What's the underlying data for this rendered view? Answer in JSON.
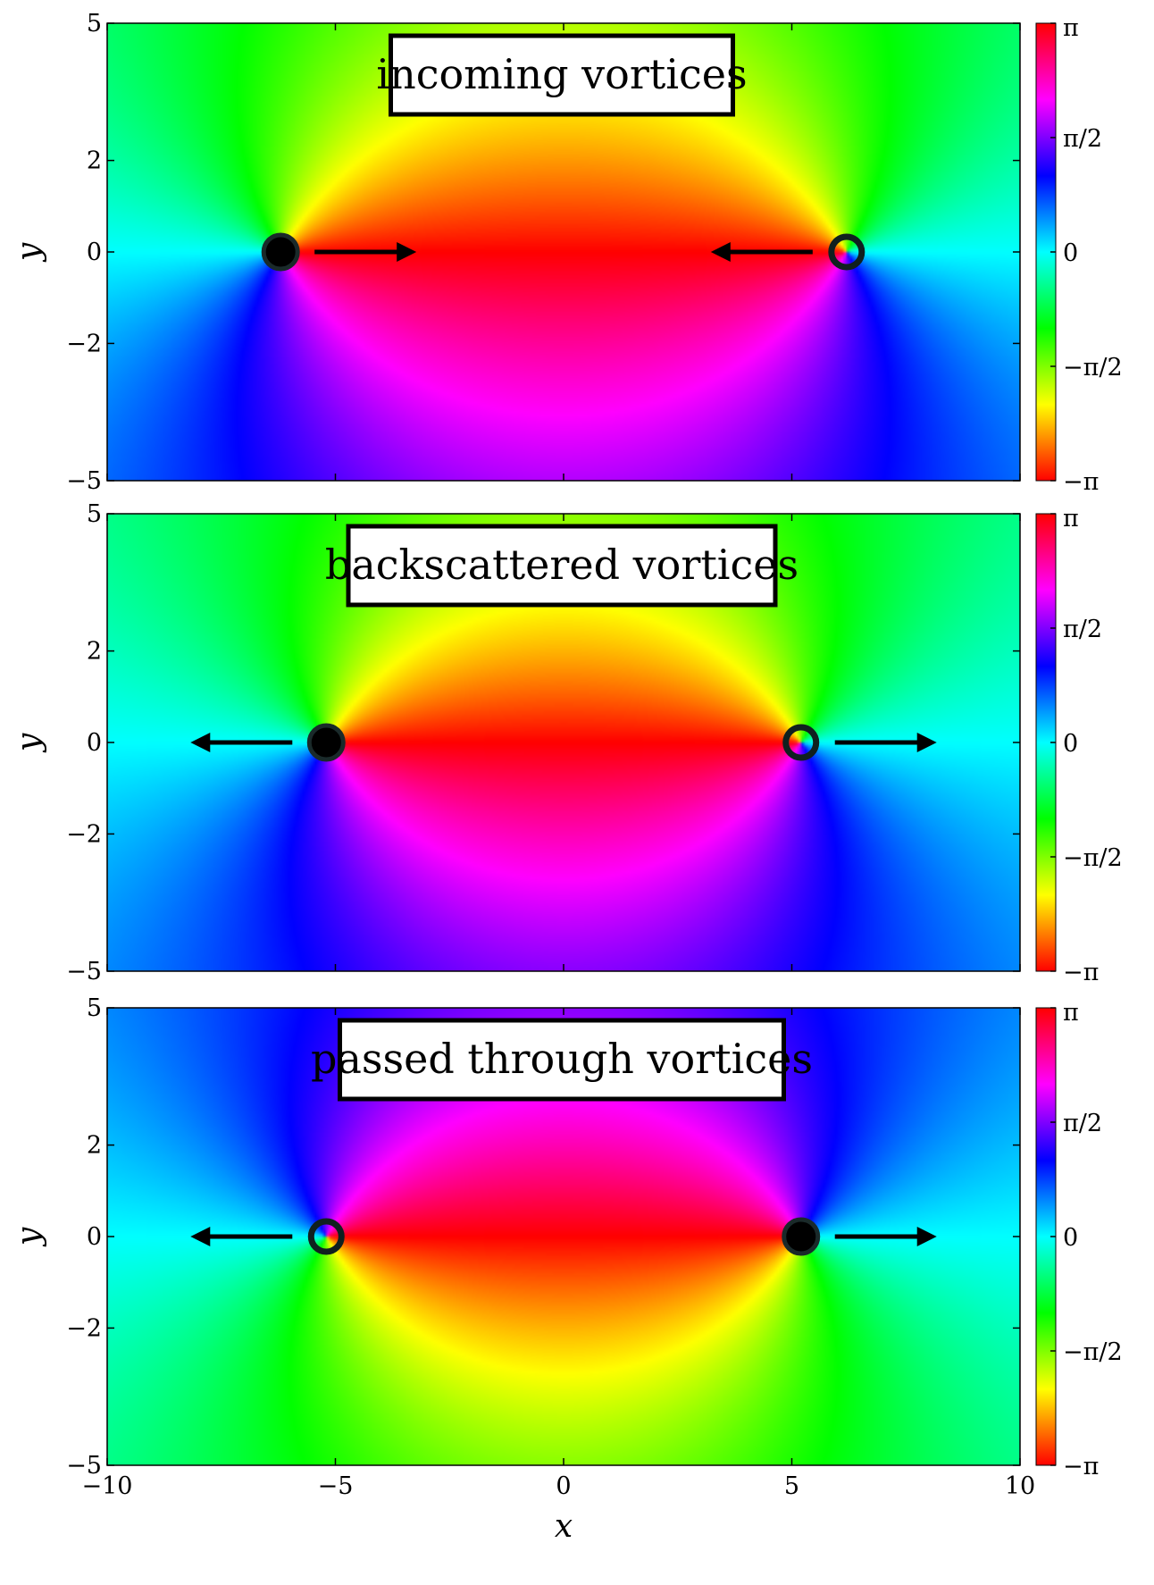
{
  "chart_data": [
    {
      "type": "heatmap",
      "title": "incoming vortices",
      "xlabel": "",
      "ylabel": "y",
      "xlim": [
        -10,
        10
      ],
      "ylim": [
        -5,
        5
      ],
      "x_ticks": [
        "−10",
        "−5",
        "0",
        "5",
        "10"
      ],
      "y_ticks": [
        "5",
        "2",
        "0",
        "−2",
        "−5"
      ],
      "y_tick_values": [
        5,
        2,
        0,
        -2,
        -5
      ],
      "colorbar": {
        "range": [
          -3.14159,
          3.14159
        ],
        "tick_values": [
          3.14159,
          1.5708,
          0,
          -1.5708,
          -3.14159
        ],
        "tick_labels": [
          "π",
          "π/2",
          "0",
          "−π/2",
          "−π"
        ]
      },
      "field_background_phase": 0,
      "vortices": [
        {
          "x": -6.2,
          "y": 0,
          "marker": "filled",
          "charge": 1,
          "direction": "right"
        },
        {
          "x": 6.2,
          "y": 0,
          "marker": "ring",
          "charge": -1,
          "direction": "left"
        }
      ]
    },
    {
      "type": "heatmap",
      "title": "backscattered vortices",
      "xlabel": "",
      "ylabel": "y",
      "xlim": [
        -10,
        10
      ],
      "ylim": [
        -5,
        5
      ],
      "x_ticks": [
        "−10",
        "−5",
        "0",
        "5",
        "10"
      ],
      "y_ticks": [
        "5",
        "2",
        "0",
        "−2",
        "−5"
      ],
      "y_tick_values": [
        5,
        2,
        0,
        -2,
        -5
      ],
      "colorbar": {
        "range": [
          -3.14159,
          3.14159
        ],
        "tick_values": [
          3.14159,
          1.5708,
          0,
          -1.5708,
          -3.14159
        ],
        "tick_labels": [
          "π",
          "π/2",
          "0",
          "−π/2",
          "−π"
        ]
      },
      "field_background_phase": 0,
      "vortices": [
        {
          "x": -5.2,
          "y": 0,
          "marker": "filled",
          "charge": 1,
          "direction": "left"
        },
        {
          "x": 5.2,
          "y": 0,
          "marker": "ring",
          "charge": -1,
          "direction": "right"
        }
      ]
    },
    {
      "type": "heatmap",
      "title": "passed through vortices",
      "xlabel": "x",
      "ylabel": "y",
      "xlim": [
        -10,
        10
      ],
      "ylim": [
        -5,
        5
      ],
      "x_ticks": [
        "−10",
        "−5",
        "0",
        "5",
        "10"
      ],
      "y_ticks": [
        "5",
        "2",
        "0",
        "−2",
        "−5"
      ],
      "y_tick_values": [
        5,
        2,
        0,
        -2,
        -5
      ],
      "colorbar": {
        "range": [
          -3.14159,
          3.14159
        ],
        "tick_values": [
          3.14159,
          1.5708,
          0,
          -1.5708,
          -3.14159
        ],
        "tick_labels": [
          "π",
          "π/2",
          "0",
          "−π/2",
          "−π"
        ]
      },
      "field_background_phase": 0,
      "vortices": [
        {
          "x": -5.2,
          "y": 0,
          "marker": "ring",
          "charge": -1,
          "direction": "left"
        },
        {
          "x": 5.2,
          "y": 0,
          "marker": "filled",
          "charge": 1,
          "direction": "right"
        }
      ]
    }
  ]
}
